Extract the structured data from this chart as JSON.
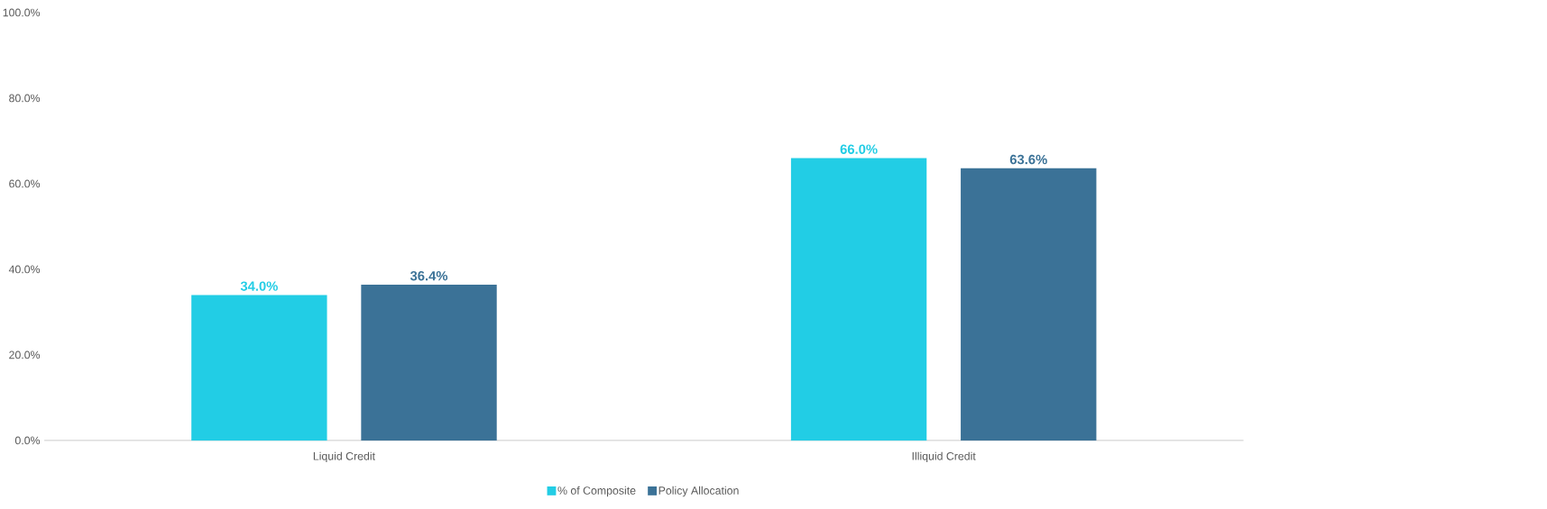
{
  "chart_data": {
    "type": "bar",
    "categories": [
      "Liquid Credit",
      "Illiquid Credit"
    ],
    "series": [
      {
        "name": "% of Composite",
        "color": "#22cde5",
        "values": [
          34.0,
          66.0
        ],
        "value_labels": [
          "34.0%",
          "66.0%"
        ]
      },
      {
        "name": "Policy Allocation",
        "color": "#3b7297",
        "values": [
          36.4,
          63.6
        ],
        "value_labels": [
          "36.4%",
          "63.6%"
        ]
      }
    ],
    "ylim": [
      0,
      100
    ],
    "yticks": [
      {
        "value": 0,
        "label": "0.0%"
      },
      {
        "value": 20,
        "label": "20.0%"
      },
      {
        "value": 40,
        "label": "40.0%"
      },
      {
        "value": 60,
        "label": "60.0%"
      },
      {
        "value": 80,
        "label": "80.0%"
      },
      {
        "value": 100,
        "label": "100.0%"
      }
    ],
    "legend": "bottom"
  }
}
